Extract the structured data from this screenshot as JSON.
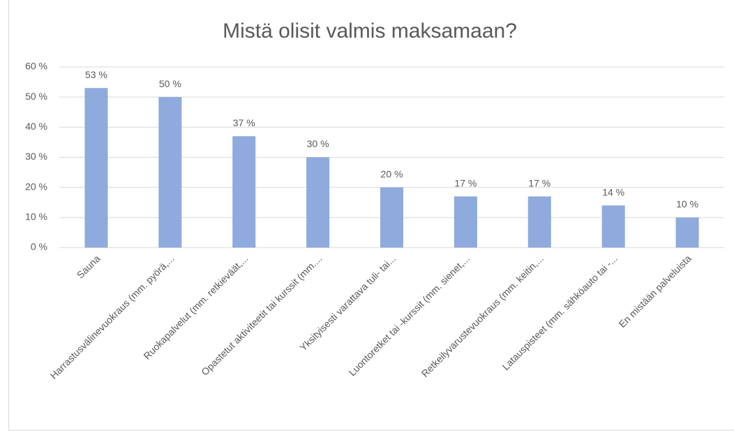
{
  "chart_data": {
    "type": "bar",
    "title": "Mistä olisit valmis maksamaan?",
    "categories": [
      "Sauna",
      "Harrastusvälinevuokraus (mm. pyörä,...",
      "Ruokapalvelut (mm. retkieväät,...",
      "Opastetut aktiviteetit tai kurssit (mm....",
      "Yksityisesti varattava tuli- tai...",
      "Luontoretket tai -kurssit (mm. sienet,...",
      "Retkeilyvarustevuokraus (mm. keitin,...",
      "Latauspisteet (mm. sähköauto tai -...",
      "En mistään palveluista"
    ],
    "values": [
      53,
      50,
      37,
      30,
      20,
      17,
      17,
      14,
      10
    ],
    "value_labels": [
      "53 %",
      "50 %",
      "37 %",
      "30 %",
      "20 %",
      "17 %",
      "17 %",
      "14 %",
      "10 %"
    ],
    "color": "#8faadc",
    "ylim": [
      0,
      60
    ],
    "yticks": [
      {
        "value": 0,
        "label": "0 %"
      },
      {
        "value": 10,
        "label": "10 %"
      },
      {
        "value": 20,
        "label": "20 %"
      },
      {
        "value": 30,
        "label": "30 %"
      },
      {
        "value": 40,
        "label": "40 %"
      },
      {
        "value": 50,
        "label": "50 %"
      },
      {
        "value": 60,
        "label": "60 %"
      }
    ],
    "grid": true
  }
}
